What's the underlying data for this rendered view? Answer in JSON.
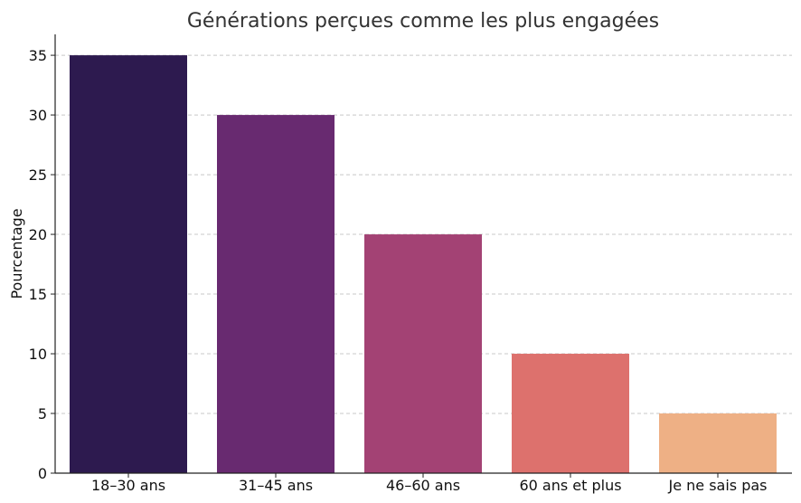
{
  "chart_data": {
    "type": "bar",
    "title": "Générations perçues comme les plus engagées",
    "xlabel": "",
    "ylabel": "Pourcentage",
    "categories": [
      "18–30 ans",
      "31–45 ans",
      "46–60 ans",
      "60 ans et plus",
      "Je ne sais pas"
    ],
    "values": [
      35,
      30,
      20,
      10,
      5
    ],
    "colors": [
      "#2d1a4f",
      "#682a70",
      "#a34274",
      "#dd716d",
      "#eeb085"
    ],
    "ylim": [
      0,
      36.75
    ],
    "yticks": [
      0,
      5,
      10,
      15,
      20,
      25,
      30,
      35
    ],
    "grid": "y-dashed",
    "legend": "none"
  }
}
